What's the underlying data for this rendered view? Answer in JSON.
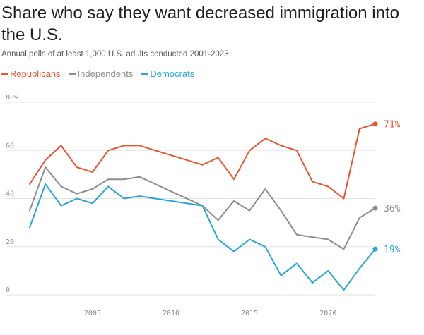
{
  "chart_data": {
    "type": "line",
    "title": "Share who say they want decreased immigration into the U.S.",
    "subtitle": "Annual polls of at least 1,000 U.S. adults conducted 2001-2023",
    "xlabel": "",
    "ylabel": "",
    "xlim": [
      2001,
      2023
    ],
    "ylim": [
      0,
      80
    ],
    "y_ticks": [
      0,
      20,
      40,
      60,
      80
    ],
    "y_tick_labels": [
      "0",
      "20",
      "40",
      "60",
      "80%"
    ],
    "x_ticks": [
      2005,
      2010,
      2015,
      2020
    ],
    "x_tick_labels": [
      "2005",
      "2010",
      "2015",
      "2020"
    ],
    "grid": true,
    "legend_placement": "top-left",
    "x": [
      2001,
      2002,
      2003,
      2004,
      2005,
      2006,
      2007,
      2008,
      2009,
      2010,
      2011,
      2012,
      2013,
      2014,
      2015,
      2016,
      2017,
      2018,
      2019,
      2020,
      2021,
      2022,
      2023
    ],
    "series": [
      {
        "name": "Republicans",
        "color": "#e8552f",
        "end_label": "71%",
        "values": [
          46,
          56,
          62,
          53,
          51,
          60,
          62,
          62,
          60,
          58,
          56,
          54,
          57,
          48,
          60,
          65,
          62,
          60,
          47,
          45,
          40,
          69,
          71
        ]
      },
      {
        "name": "Independents",
        "color": "#8c8c8c",
        "end_label": "36%",
        "values": [
          35,
          53,
          45,
          42,
          44,
          48,
          48,
          49,
          46,
          43,
          40,
          37,
          31,
          39,
          35,
          44,
          35,
          25,
          24,
          23,
          19,
          32,
          36
        ]
      },
      {
        "name": "Democrats",
        "color": "#27a6dc",
        "end_label": "19%",
        "values": [
          28,
          46,
          37,
          40,
          38,
          45,
          40,
          41,
          40,
          39,
          38,
          37,
          23,
          18,
          23,
          20,
          8,
          13,
          5,
          10,
          2,
          11,
          19
        ]
      }
    ]
  }
}
